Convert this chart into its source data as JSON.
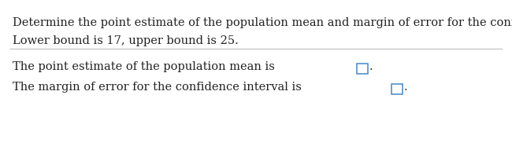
{
  "line1": "Determine the point estimate of the population mean and margin of error for the confidence interval.",
  "line2": "Lower bound is 17, upper bound is 25.",
  "line3_prefix": "The point estimate of the population mean is ",
  "line4_prefix": "The margin of error for the confidence interval is ",
  "text_color": "#222222",
  "box_color": "#4488cc",
  "background_color": "#ffffff",
  "font_size": 10.5,
  "separator_color": "#bbbbbb",
  "period": "."
}
